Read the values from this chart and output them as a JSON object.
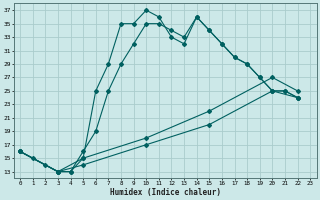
{
  "xlabel": "Humidex (Indice chaleur)",
  "bg_color": "#cce8e8",
  "grid_color": "#aacccc",
  "line_color": "#006060",
  "xlim": [
    -0.5,
    23.5
  ],
  "ylim": [
    12,
    38
  ],
  "yticks": [
    13,
    15,
    17,
    19,
    21,
    23,
    25,
    27,
    29,
    31,
    33,
    35,
    37
  ],
  "xticks": [
    0,
    1,
    2,
    3,
    4,
    5,
    6,
    7,
    8,
    9,
    10,
    11,
    12,
    13,
    14,
    15,
    16,
    17,
    18,
    19,
    20,
    21,
    22,
    23
  ],
  "line1_x": [
    0,
    1,
    2,
    3,
    4,
    5,
    6,
    7,
    8,
    9,
    10,
    11,
    12,
    13,
    14,
    15,
    16,
    17,
    18,
    19,
    20,
    21,
    22
  ],
  "line1_y": [
    16,
    15,
    14,
    13,
    13,
    15,
    25,
    29,
    35,
    35,
    37,
    36,
    33,
    32,
    36,
    34,
    32,
    30,
    29,
    27,
    25,
    25,
    24
  ],
  "line2_x": [
    0,
    3,
    4,
    5,
    6,
    7,
    8,
    9,
    10,
    11,
    12,
    13,
    14,
    15,
    16,
    17,
    18,
    19,
    20,
    21,
    22
  ],
  "line2_y": [
    16,
    13,
    13,
    16,
    19,
    25,
    29,
    32,
    35,
    35,
    34,
    33,
    36,
    34,
    32,
    30,
    29,
    27,
    25,
    25,
    24
  ],
  "line3_x": [
    0,
    3,
    5,
    10,
    15,
    20,
    22
  ],
  "line3_y": [
    16,
    13,
    14,
    17,
    20,
    25,
    24
  ],
  "line4_x": [
    0,
    3,
    5,
    10,
    15,
    20,
    22
  ],
  "line4_y": [
    16,
    13,
    15,
    18,
    22,
    27,
    25
  ]
}
